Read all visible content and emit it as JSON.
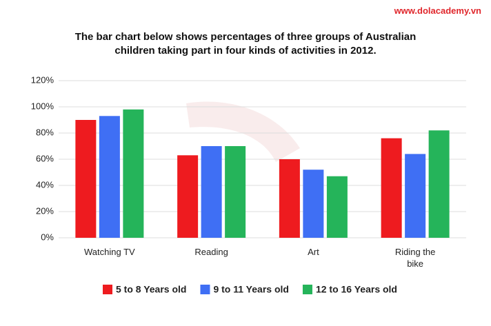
{
  "watermark": "www.dolacademy.vn",
  "chart_data": {
    "type": "bar",
    "title": "The bar chart below shows percentages of three groups of Australian children taking part in four kinds of activities in 2012.",
    "categories": [
      "Watching TV",
      "Reading",
      "Art",
      "Riding the bike"
    ],
    "series": [
      {
        "name": "5 to 8 Years old",
        "color": "#ee1b1f",
        "values": [
          90,
          63,
          60,
          76
        ]
      },
      {
        "name": "9 to 11 Years old",
        "color": "#3f6ff4",
        "values": [
          93,
          70,
          52,
          64
        ]
      },
      {
        "name": "12 to 16 Years old",
        "color": "#25b45a",
        "values": [
          98,
          70,
          47,
          82
        ]
      }
    ],
    "ylim": [
      0,
      120
    ],
    "yticks": [
      {
        "value": 0,
        "label": "0%"
      },
      {
        "value": 20,
        "label": "20%"
      },
      {
        "value": 40,
        "label": "40%"
      },
      {
        "value": 60,
        "label": "60%"
      },
      {
        "value": 80,
        "label": "80%"
      },
      {
        "value": 100,
        "label": "100%"
      },
      {
        "value": 120,
        "label": "120%"
      }
    ],
    "grid": true
  }
}
